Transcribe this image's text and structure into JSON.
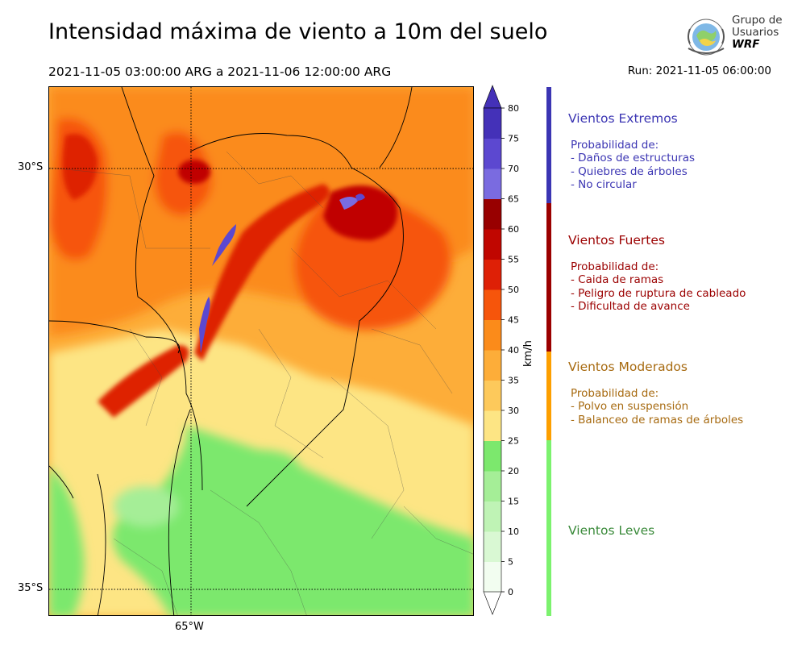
{
  "header": {
    "title": "Intensidad máxima de viento a 10m del suelo",
    "period": "2021-11-05 03:00:00 ARG  a  2021-11-06 12:00:00 ARG",
    "run": "Run: 2021-11-05 06:00:00"
  },
  "logo": {
    "line1": "Grupo de",
    "line2": "Usuarios",
    "line3": "WRF",
    "icon": "globe-logo-icon"
  },
  "map": {
    "lat_labels": [
      "30°S",
      "35°S"
    ],
    "lon_labels": [
      "65°W"
    ],
    "graticule": "dotted"
  },
  "colorbar": {
    "unit": "km/h",
    "ticks": [
      "0",
      "5",
      "10",
      "15",
      "20",
      "25",
      "30",
      "35",
      "40",
      "45",
      "50",
      "55",
      "60",
      "65",
      "70",
      "75",
      "80"
    ],
    "colors": [
      "#f2fdf0",
      "#d9f8d3",
      "#bff3b5",
      "#a5ee97",
      "#7ce86d",
      "#fde584",
      "#fdc95b",
      "#fdad39",
      "#fb8b1a",
      "#f6550b",
      "#de2006",
      "#c00600",
      "#980000",
      "#7a6be0",
      "#5c48d0",
      "#4431b8"
    ],
    "extend": "both"
  },
  "categories": [
    {
      "title": "Vientos Extremos",
      "color": "#3b35b3",
      "desc": [
        "Probabilidad de:",
        "- Daños de estructuras",
        "- Quiebres de árboles",
        "- No circular"
      ]
    },
    {
      "title": "Vientos Fuertes",
      "color": "#9b0000",
      "desc": [
        "Probabilidad de:",
        "- Caida de ramas",
        "- Peligro de ruptura de cableado",
        "- Dificultad de avance"
      ]
    },
    {
      "title": "Vientos Moderados",
      "color": "#a76a10",
      "bar_color": "#fd9f00",
      "desc": [
        "Probabilidad de:",
        "- Polvo en suspensión",
        "- Balanceo de ramas de árboles"
      ]
    },
    {
      "title": "Vientos Leves",
      "color": "#3a8a3a",
      "bar_color": "#7cf26e",
      "desc": []
    }
  ]
}
